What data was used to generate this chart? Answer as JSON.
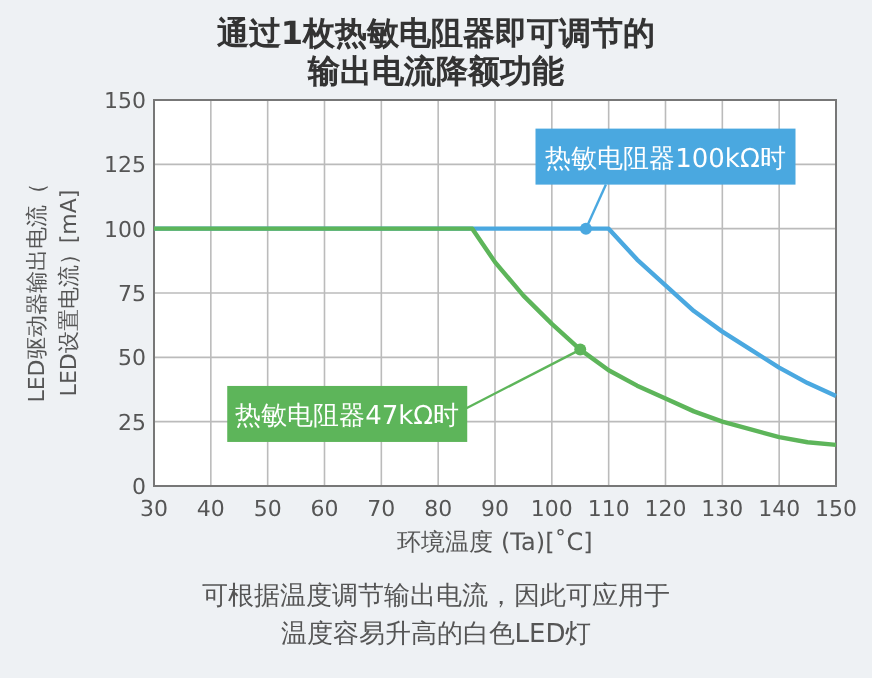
{
  "chart_data": {
    "type": "line",
    "title": "通过1枚热敏电阻器即可调节的输出电流降额功能",
    "xlabel": "环境温度 (Ta)[˚C]",
    "ylabel": "LED驱动器输出电流（LED设置电流）[mA]",
    "series": [
      {
        "name": "热敏电阻器100kΩ时",
        "color": "#4aa8e0",
        "x": [
          30,
          110,
          115,
          120,
          125,
          130,
          135,
          140,
          145,
          150
        ],
        "values": [
          100,
          100,
          88,
          78,
          68,
          60,
          53,
          46,
          40,
          35
        ]
      },
      {
        "name": "热敏电阻器47kΩ时",
        "color": "#5db55a",
        "x": [
          30,
          86,
          90,
          95,
          100,
          105,
          110,
          115,
          120,
          125,
          130,
          135,
          140,
          145,
          150
        ],
        "values": [
          100,
          100,
          87,
          74,
          63,
          53,
          45,
          39,
          34,
          29,
          25,
          22,
          19,
          17,
          16
        ]
      }
    ],
    "xlim": [
      30,
      150
    ],
    "ylim": [
      0,
      150
    ],
    "xticks": [
      30,
      40,
      50,
      60,
      70,
      80,
      90,
      100,
      110,
      120,
      130,
      140,
      150
    ],
    "yticks": [
      0,
      25,
      50,
      75,
      100,
      125,
      150
    ],
    "grid": true,
    "annotations": [
      "可根据温度调节输出电流，因此可应用于温度容易升高的白色LED灯"
    ]
  }
}
